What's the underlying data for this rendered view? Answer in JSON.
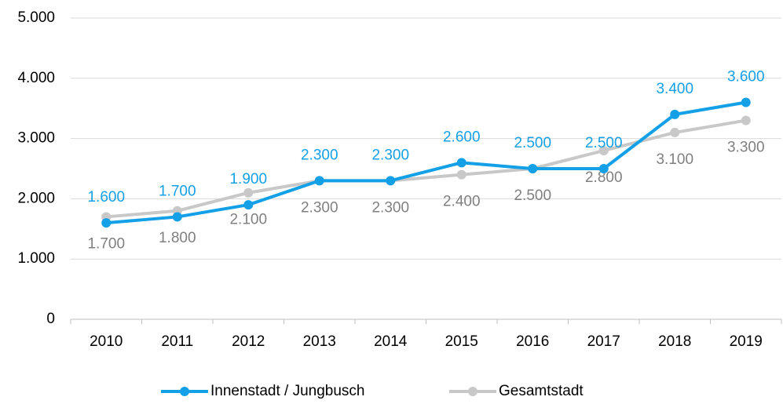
{
  "chart_data": {
    "type": "line",
    "categories": [
      "2010",
      "2011",
      "2012",
      "2013",
      "2014",
      "2015",
      "2016",
      "2017",
      "2018",
      "2019"
    ],
    "series": [
      {
        "name": "Innenstadt / Jungbusch",
        "color": "#14a0e6",
        "values": [
          1600,
          1700,
          1900,
          2300,
          2300,
          2600,
          2500,
          2500,
          3400,
          3600
        ],
        "value_labels": [
          "1.600",
          "1.700",
          "1.900",
          "2.300",
          "2.300",
          "2.600",
          "2.500",
          "2.500",
          "3.400",
          "3.600"
        ]
      },
      {
        "name": "Gesamtstadt",
        "color": "#c8c8c8",
        "values": [
          1700,
          1800,
          2100,
          2300,
          2300,
          2400,
          2500,
          2800,
          3100,
          3300
        ],
        "value_labels": [
          "1.700",
          "1.800",
          "2.100",
          "2.300",
          "2.300",
          "2.400",
          "2.500",
          "2.800",
          "3.100",
          "3.300"
        ]
      }
    ],
    "ylim": [
      0,
      5000
    ],
    "yticks": [
      {
        "value": 0,
        "label": "0"
      },
      {
        "value": 1000,
        "label": "1.000"
      },
      {
        "value": 2000,
        "label": "2.000"
      },
      {
        "value": 3000,
        "label": "3.000"
      },
      {
        "value": 4000,
        "label": "4.000"
      },
      {
        "value": 5000,
        "label": "5.000"
      }
    ],
    "grid": true,
    "legend": "bottom"
  }
}
